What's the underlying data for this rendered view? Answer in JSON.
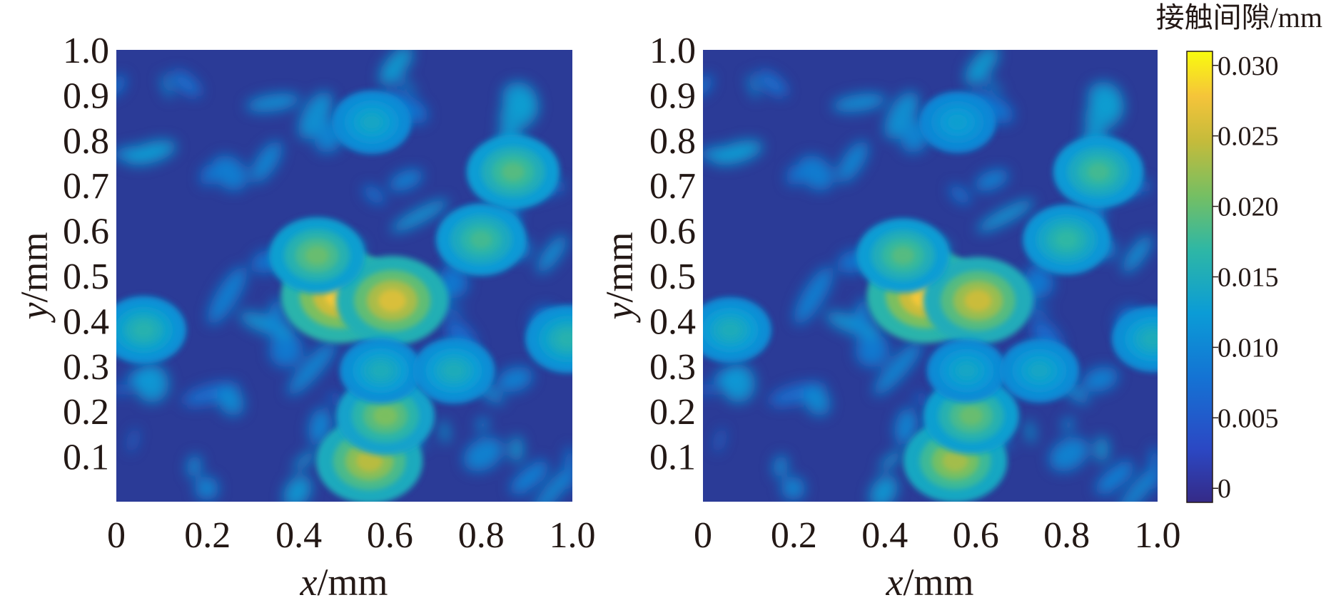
{
  "chart_data": [
    {
      "type": "heatmap",
      "title": "",
      "xlabel_var": "x",
      "xlabel_unit": "/mm",
      "ylabel_var": "y",
      "ylabel_unit": "/mm",
      "xlim": [
        0,
        1.0
      ],
      "ylim": [
        0,
        1.0
      ],
      "xticks": [
        "0",
        "0.2",
        "0.4",
        "0.6",
        "0.8",
        "1.0"
      ],
      "yticks": [
        "0.1",
        "0.2",
        "0.3",
        "0.4",
        "0.5",
        "0.6",
        "0.7",
        "0.8",
        "0.9",
        "1.0"
      ],
      "grid": false,
      "colormap": "parula",
      "value_range": [
        -0.001,
        0.031
      ],
      "hotspots": [
        {
          "x": 0.49,
          "y": 0.455,
          "value": 0.028
        },
        {
          "x": 0.605,
          "y": 0.445,
          "value": 0.026
        },
        {
          "x": 0.555,
          "y": 0.09,
          "value": 0.024
        },
        {
          "x": 0.59,
          "y": 0.19,
          "value": 0.021
        },
        {
          "x": 0.44,
          "y": 0.545,
          "value": 0.02
        },
        {
          "x": 0.87,
          "y": 0.73,
          "value": 0.019
        },
        {
          "x": 0.8,
          "y": 0.58,
          "value": 0.018
        },
        {
          "x": 0.06,
          "y": 0.38,
          "value": 0.016
        },
        {
          "x": 0.58,
          "y": 0.29,
          "value": 0.015
        },
        {
          "x": 0.74,
          "y": 0.29,
          "value": 0.015
        },
        {
          "x": 0.56,
          "y": 0.84,
          "value": 0.014
        },
        {
          "x": 0.99,
          "y": 0.36,
          "value": 0.016
        }
      ]
    },
    {
      "type": "heatmap",
      "title": "",
      "xlabel_var": "x",
      "xlabel_unit": "/mm",
      "ylabel_var": "y",
      "ylabel_unit": "/mm",
      "xlim": [
        0,
        1.0
      ],
      "ylim": [
        0,
        1.0
      ],
      "xticks": [
        "0",
        "0.2",
        "0.4",
        "0.6",
        "0.8",
        "1.0"
      ],
      "yticks": [
        "0.1",
        "0.2",
        "0.3",
        "0.4",
        "0.5",
        "0.6",
        "0.7",
        "0.8",
        "0.9",
        "1.0"
      ],
      "grid": false,
      "colormap": "parula",
      "value_range": [
        -0.001,
        0.031
      ],
      "hotspots": [
        {
          "x": 0.49,
          "y": 0.455,
          "value": 0.028
        },
        {
          "x": 0.605,
          "y": 0.445,
          "value": 0.025
        },
        {
          "x": 0.555,
          "y": 0.09,
          "value": 0.023
        },
        {
          "x": 0.59,
          "y": 0.19,
          "value": 0.02
        },
        {
          "x": 0.44,
          "y": 0.545,
          "value": 0.019
        },
        {
          "x": 0.87,
          "y": 0.73,
          "value": 0.018
        },
        {
          "x": 0.8,
          "y": 0.58,
          "value": 0.017
        },
        {
          "x": 0.06,
          "y": 0.38,
          "value": 0.015
        },
        {
          "x": 0.58,
          "y": 0.29,
          "value": 0.014
        },
        {
          "x": 0.74,
          "y": 0.29,
          "value": 0.014
        },
        {
          "x": 0.56,
          "y": 0.84,
          "value": 0.013
        },
        {
          "x": 0.99,
          "y": 0.36,
          "value": 0.015
        }
      ]
    }
  ],
  "colorbar": {
    "title": "接触间隙/mm",
    "ticks": [
      {
        "label": "0.030",
        "value": 0.03
      },
      {
        "label": "0.025",
        "value": 0.025
      },
      {
        "label": "0.020",
        "value": 0.02
      },
      {
        "label": "0.015",
        "value": 0.015
      },
      {
        "label": "0.010",
        "value": 0.01
      },
      {
        "label": "0.005",
        "value": 0.005
      },
      {
        "label": "0",
        "value": 0.0
      }
    ],
    "range": [
      -0.001,
      0.031
    ]
  },
  "colors": {
    "background": "#2b3b97",
    "low": "#352a87",
    "mid": "#1e9ed4",
    "high_mid": "#8ec53f",
    "peak": "#f9c63a",
    "max": "#f9fb0e",
    "text": "#231815"
  }
}
